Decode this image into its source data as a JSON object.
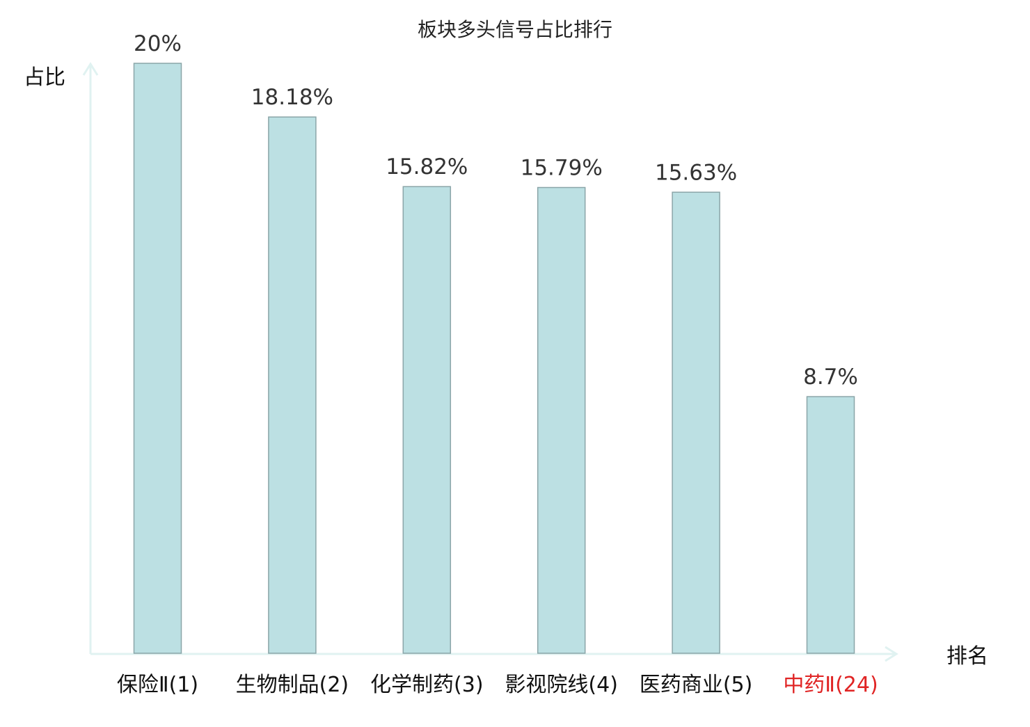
{
  "chart_data": {
    "type": "bar",
    "title": "板块多头信号占比排行",
    "xlabel": "排名",
    "ylabel": "占比",
    "ylim": [
      0,
      20
    ],
    "categories": [
      "保险Ⅱ(1)",
      "生物制品(2)",
      "化学制药(3)",
      "影视院线(4)",
      "医药商业(5)",
      "中药Ⅱ(24)"
    ],
    "values": [
      20,
      18.18,
      15.82,
      15.79,
      15.63,
      8.7
    ],
    "value_labels": [
      "20%",
      "18.18%",
      "15.82%",
      "15.79%",
      "15.63%",
      "8.7%"
    ],
    "highlight_index": 5,
    "colors": {
      "bar_fill": "#bce0e3",
      "bar_stroke": "#8aa5a8",
      "axis": "#e0f2f1",
      "label": "#111111",
      "value_text": "#333333",
      "highlight": "#e02424"
    },
    "grid": false,
    "legend": "none"
  }
}
